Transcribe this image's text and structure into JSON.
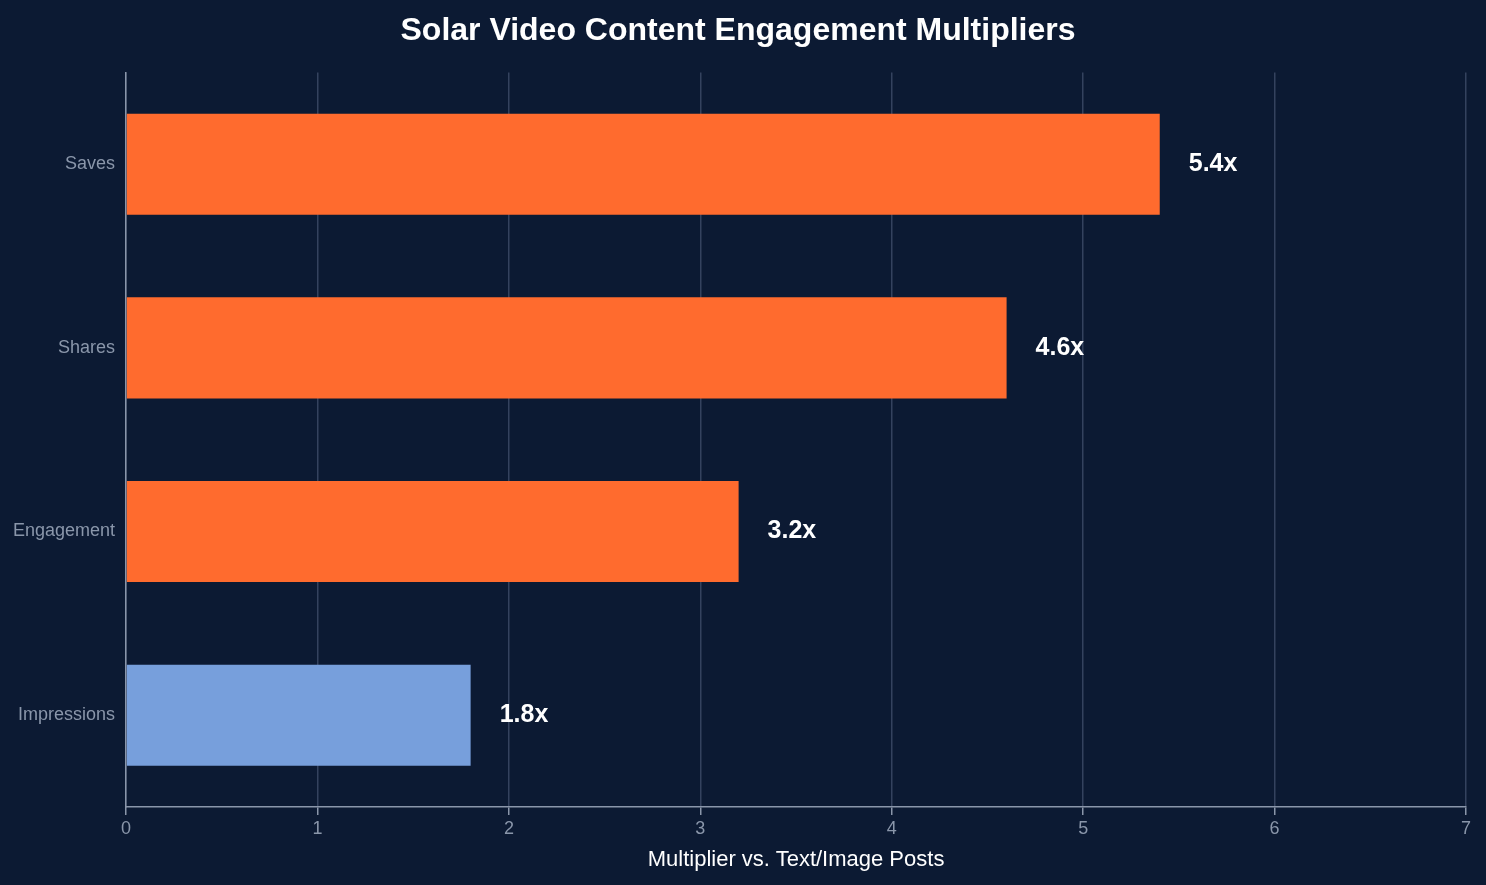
{
  "chart_data": {
    "type": "bar",
    "orientation": "horizontal",
    "title": "Solar Video Content Engagement Multipliers",
    "xlabel": "Multiplier vs. Text/Image Posts",
    "categories": [
      "Saves",
      "Shares",
      "Engagement",
      "Impressions"
    ],
    "values": [
      5.4,
      4.6,
      3.2,
      1.8
    ],
    "colors": [
      "#ff6b2e",
      "#ff6b2e",
      "#ff6b2e",
      "#779fdc"
    ],
    "value_labels": [
      "5.4x",
      "4.6x",
      "3.2x",
      "1.8x"
    ],
    "xlim": [
      0,
      7
    ],
    "xticks": [
      0,
      1,
      2,
      3,
      4,
      5,
      6,
      7
    ],
    "grid": "x",
    "legend": false
  }
}
